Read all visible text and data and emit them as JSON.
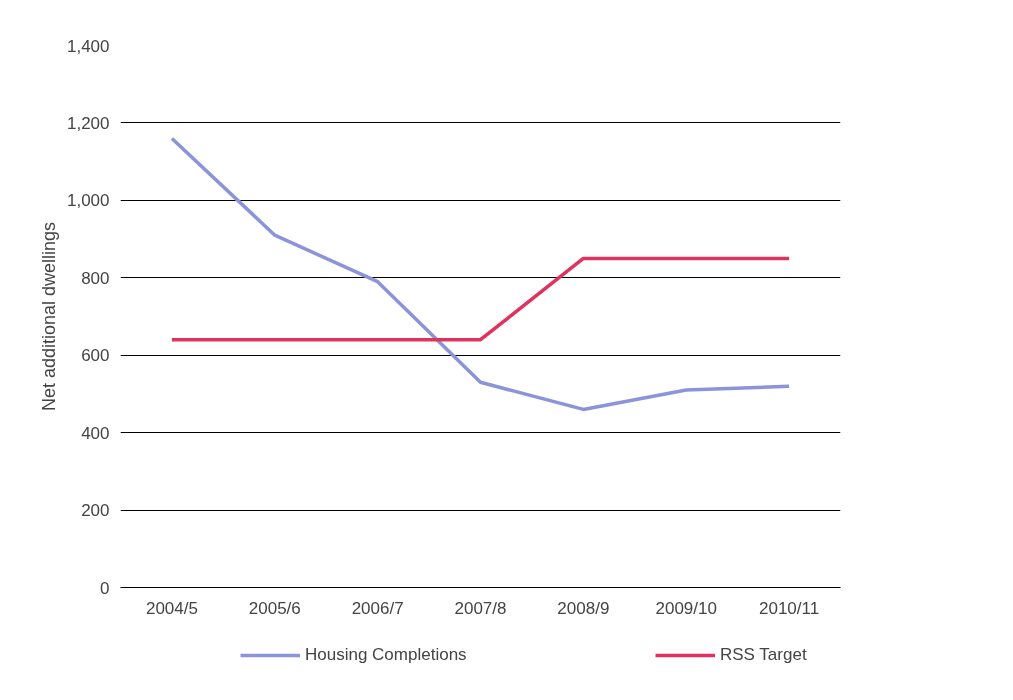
{
  "chart_data": {
    "type": "line",
    "ylabel": "Net additional dwellings",
    "categories": [
      "2004/5",
      "2005/6",
      "2006/7",
      "2007/8",
      "2008/9",
      "2009/10",
      "2010/11"
    ],
    "series": [
      {
        "name": "Housing Completions",
        "color": "#8b93d9",
        "values": [
          1160,
          910,
          790,
          530,
          460,
          510,
          520
        ]
      },
      {
        "name": "RSS Target",
        "color": "#e0325f",
        "values": [
          640,
          640,
          640,
          640,
          850,
          850,
          850
        ]
      }
    ],
    "ylim": [
      0,
      1400
    ],
    "yticks": [
      {
        "value": 0,
        "label": "0"
      },
      {
        "value": 200,
        "label": "200"
      },
      {
        "value": 400,
        "label": "400"
      },
      {
        "value": 600,
        "label": "600"
      },
      {
        "value": 800,
        "label": "800"
      },
      {
        "value": 1000,
        "label": "1,000"
      },
      {
        "value": 1200,
        "label": "1,200"
      },
      {
        "value": 1400,
        "label": "1,400"
      }
    ],
    "grid": "y",
    "legend": "bottom",
    "marker": "none",
    "line_style": "solid"
  }
}
